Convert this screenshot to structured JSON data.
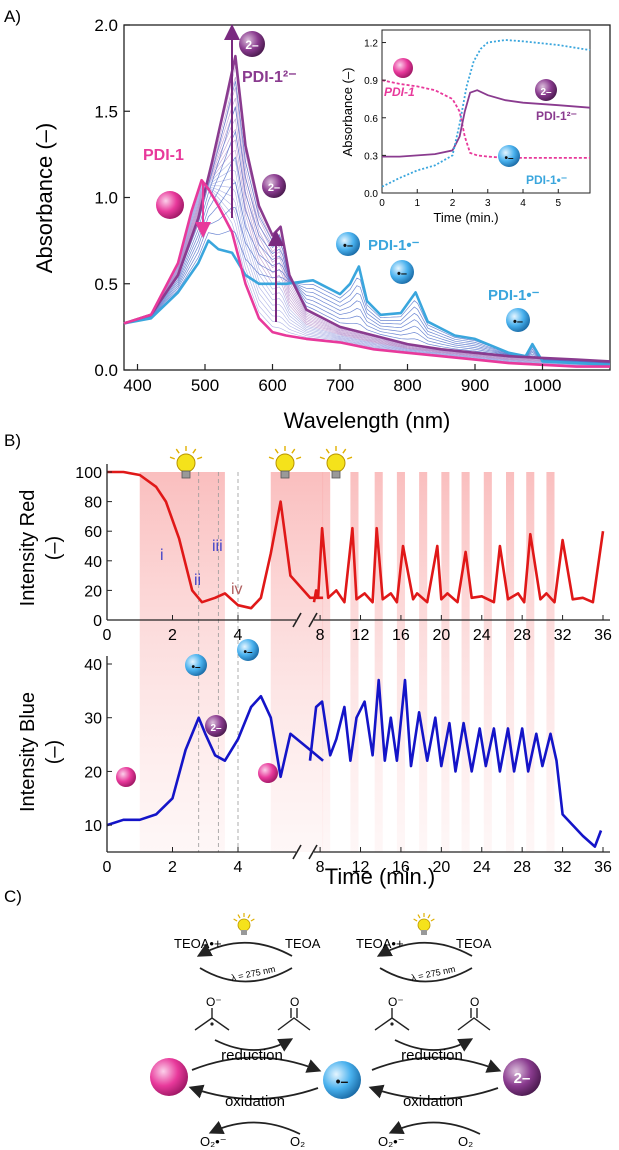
{
  "colors": {
    "pink": "#e8399b",
    "purple": "#8a3b8f",
    "cyan": "#3aa6dd",
    "red": "#e01818",
    "blue": "#1414c8",
    "shade": "#f7a8a8",
    "bulb": "#f5e21b"
  },
  "panelA": {
    "label": "A)",
    "xlabel": "Wavelength (nm)",
    "ylabel": "Absorbance (–)",
    "xticks": [
      "400",
      "500",
      "600",
      "700",
      "800",
      "900",
      "1000"
    ],
    "yticks": [
      "0.0",
      "0.5",
      "1.0",
      "1.5",
      "2.0"
    ],
    "labels": {
      "pdi1": "PDI-1",
      "pdi1_dianion": "PDI-1²⁻",
      "pdi1_radical_a": "PDI-1•⁻",
      "pdi1_radical_b": "PDI-1•⁻",
      "dianion_glyph": "2–",
      "radical_glyph": "•–"
    },
    "inset": {
      "xlabel": "Time (min.)",
      "ylabel": "Absorbance (–)",
      "xticks": [
        "0",
        "1",
        "2",
        "3",
        "4",
        "5"
      ],
      "yticks": [
        "0.0",
        "0.3",
        "0.6",
        "0.9",
        "1.2"
      ],
      "labels": {
        "pdi1": "PDI-1",
        "pdi1_dianion": "PDI-1²⁻",
        "pdi1_radical": "PDI-1•⁻"
      }
    }
  },
  "panelB": {
    "label": "B)",
    "red_ylabel_1": "Intensity Red",
    "red_ylabel_2": "(–)",
    "blue_ylabel_1": "Intensity Blue",
    "blue_ylabel_2": "(–)",
    "xlabel": "Time (min.)",
    "red_yticks": [
      "0",
      "20",
      "40",
      "60",
      "80",
      "100"
    ],
    "blue_yticks": [
      "10",
      "20",
      "30",
      "40"
    ],
    "xticks_left": [
      "0",
      "2",
      "4"
    ],
    "xticks_right": [
      "8",
      "12",
      "16",
      "20",
      "24",
      "28",
      "32",
      "36"
    ],
    "stage_labels": [
      "i",
      "ii",
      "iii",
      "iv"
    ]
  },
  "panelC": {
    "label": "C)",
    "teoa_ox": "TEOA•+",
    "teoa": "TEOA",
    "lambda": "λ = 275 nm",
    "o_minus": "O⁻",
    "o": "O",
    "reduction": "reduction",
    "oxidation": "oxidation",
    "o2_radical": "O₂•⁻",
    "o2": "O₂",
    "dianion_glyph": "2–"
  },
  "chart_data": [
    {
      "type": "line",
      "title": "",
      "xlabel": "Wavelength (nm)",
      "ylabel": "Absorbance (–)",
      "xlim": [
        380,
        1100
      ],
      "ylim": [
        0,
        2.0
      ],
      "series": [
        {
          "name": "PDI-1",
          "x": [
            380,
            420,
            460,
            480,
            495,
            505,
            520,
            540,
            560,
            580,
            600,
            620,
            650,
            700,
            750,
            800,
            850,
            900,
            950,
            1000,
            1050,
            1100
          ],
          "values": [
            0.27,
            0.32,
            0.62,
            0.92,
            1.1,
            1.05,
            0.95,
            0.8,
            0.5,
            0.3,
            0.22,
            0.2,
            0.18,
            0.16,
            0.12,
            0.1,
            0.08,
            0.06,
            0.04,
            0.03,
            0.02,
            0.02
          ]
        },
        {
          "name": "PDI-1²⁻",
          "x": [
            380,
            420,
            460,
            490,
            510,
            530,
            545,
            560,
            580,
            600,
            612,
            625,
            650,
            700,
            750,
            800,
            850,
            900,
            950,
            1000,
            1050,
            1100
          ],
          "values": [
            0.27,
            0.32,
            0.55,
            0.88,
            1.2,
            1.55,
            1.82,
            1.3,
            0.95,
            0.78,
            0.83,
            0.55,
            0.35,
            0.25,
            0.2,
            0.15,
            0.12,
            0.1,
            0.08,
            0.07,
            0.06,
            0.05
          ]
        },
        {
          "name": "PDI-1•⁻",
          "x": [
            380,
            420,
            460,
            490,
            505,
            520,
            540,
            560,
            580,
            620,
            660,
            700,
            715,
            728,
            740,
            760,
            790,
            812,
            830,
            870,
            900,
            950,
            975,
            985,
            1000,
            1050,
            1100
          ],
          "values": [
            0.27,
            0.3,
            0.45,
            0.62,
            0.75,
            0.7,
            0.68,
            0.55,
            0.5,
            0.5,
            0.52,
            0.44,
            0.5,
            0.6,
            0.4,
            0.32,
            0.33,
            0.45,
            0.28,
            0.2,
            0.18,
            0.1,
            0.08,
            0.15,
            0.05,
            0.04,
            0.03
          ]
        }
      ]
    },
    {
      "type": "line",
      "title": "",
      "xlabel": "Time (min.)",
      "ylabel": "Absorbance (–)",
      "xlim": [
        0,
        5.9
      ],
      "ylim": [
        0,
        1.3
      ],
      "series": [
        {
          "name": "PDI-1",
          "x": [
            0,
            0.5,
            1,
            1.5,
            2,
            2.2,
            2.35,
            2.5,
            2.7,
            3,
            3.5,
            4,
            5,
            5.9
          ],
          "values": [
            0.9,
            0.87,
            0.85,
            0.82,
            0.75,
            0.65,
            0.45,
            0.32,
            0.3,
            0.29,
            0.28,
            0.28,
            0.28,
            0.28
          ]
        },
        {
          "name": "PDI-1²⁻",
          "x": [
            0,
            0.5,
            1,
            1.5,
            2,
            2.2,
            2.35,
            2.5,
            2.7,
            3,
            3.5,
            4,
            5,
            5.9
          ],
          "values": [
            0.29,
            0.29,
            0.3,
            0.31,
            0.34,
            0.45,
            0.65,
            0.8,
            0.82,
            0.78,
            0.74,
            0.72,
            0.7,
            0.68
          ]
        },
        {
          "name": "PDI-1•⁻",
          "x": [
            0,
            0.5,
            1,
            1.5,
            2,
            2.2,
            2.4,
            2.6,
            2.8,
            3,
            3.5,
            4,
            5,
            5.9
          ],
          "values": [
            0.05,
            0.12,
            0.18,
            0.22,
            0.3,
            0.55,
            0.85,
            1.05,
            1.15,
            1.2,
            1.22,
            1.21,
            1.18,
            1.14
          ]
        }
      ]
    },
    {
      "type": "line",
      "title": "",
      "xlabel": "Time (min.)",
      "ylabel": "Intensity Red (–)",
      "ylim": [
        0,
        100
      ],
      "series": [
        {
          "name": "",
          "x": [
            0,
            0.5,
            1,
            1.5,
            1.8,
            2.2,
            2.6,
            2.9,
            3.3,
            3.6,
            4.0,
            4.4,
            4.7,
            5.0,
            5.3,
            5.6,
            6.2,
            6.6,
            7.0,
            7.4,
            7.6,
            7.8,
            8.2,
            8.8,
            9.6,
            10.4,
            11.2,
            11.6,
            12.4,
            13.2,
            13.6,
            14.2,
            15.0,
            15.6,
            16.2,
            17.2,
            17.6,
            18.6,
            19.6,
            20.0,
            20.6,
            21.6,
            22.4,
            23.0,
            24.0,
            25.2,
            25.8,
            26.6,
            27.6,
            28.2,
            28.8,
            29.8,
            30.4,
            31.2,
            32.0,
            33.0,
            34.0,
            35.0,
            36.0
          ],
          "values": [
            100,
            100,
            98,
            90,
            80,
            55,
            20,
            12,
            15,
            18,
            10,
            8,
            15,
            45,
            80,
            30,
            15,
            15,
            null,
            12,
            20,
            15,
            62,
            15,
            20,
            12,
            62,
            14,
            18,
            12,
            62,
            14,
            18,
            12,
            50,
            14,
            18,
            12,
            50,
            14,
            18,
            12,
            46,
            15,
            16,
            12,
            50,
            14,
            18,
            12,
            58,
            14,
            18,
            12,
            54,
            14,
            15,
            12,
            60
          ]
        }
      ]
    },
    {
      "type": "line",
      "title": "",
      "xlabel": "Time (min.)",
      "ylabel": "Intensity Blue (–)",
      "ylim": [
        5,
        40
      ],
      "series": [
        {
          "name": "",
          "x": [
            0,
            0.5,
            1,
            1.5,
            2,
            2.4,
            2.8,
            3.0,
            3.3,
            3.6,
            4.0,
            4.4,
            4.7,
            5.0,
            5.3,
            5.6,
            6.2,
            6.6
          ],
          "values": [
            10,
            11,
            11,
            12,
            15,
            24,
            30,
            27,
            23,
            22,
            26,
            32,
            34,
            30,
            19,
            27,
            24,
            22
          ]
        }
      ]
    }
  ]
}
